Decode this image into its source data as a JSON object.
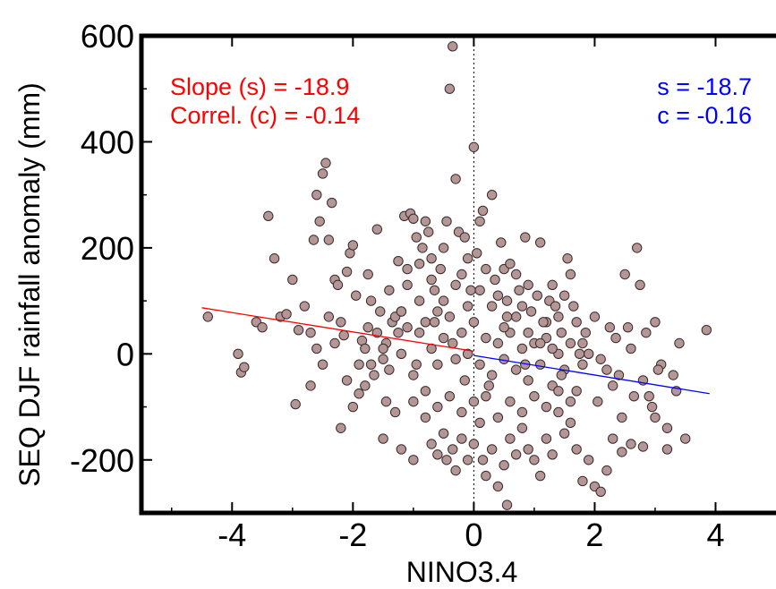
{
  "chart_data": {
    "type": "scatter",
    "xlabel": "NINO3.4",
    "ylabel": "SEQ DJF rainfall anomaly (mm)",
    "xlim": [
      -5.5,
      5.0
    ],
    "ylim": [
      -300,
      600
    ],
    "xticks": [
      "-4",
      "-2",
      "0",
      "2",
      "4"
    ],
    "xtick_values": [
      -4,
      -2,
      0,
      2,
      4
    ],
    "yticks": [
      "600",
      "400",
      "200",
      "0",
      "-200"
    ],
    "ytick_values": [
      600,
      400,
      200,
      0,
      -200
    ],
    "reference_line_x": 0,
    "point_color": "#b49696",
    "point_stroke": "#3a2a2a",
    "annotations": {
      "left_slope": "Slope (s) = -18.9",
      "left_correl": "Correl. (c) = -0.14",
      "right_slope": "s = -18.7",
      "right_correl": "c = -0.16",
      "left_color": "#ff0000",
      "right_color": "#0000ff"
    },
    "fit_lines": [
      {
        "x": [
          -4.5,
          0
        ],
        "y": [
          87,
          5
        ],
        "color": "#ff0000"
      },
      {
        "x": [
          0,
          3.9
        ],
        "y": [
          -3,
          -75
        ],
        "color": "#0000ff"
      }
    ],
    "series": [
      {
        "points": [
          [
            -4.4,
            70
          ],
          [
            -3.9,
            0
          ],
          [
            -3.85,
            -35
          ],
          [
            -3.8,
            -25
          ],
          [
            -3.6,
            60
          ],
          [
            -3.4,
            260
          ],
          [
            -3.3,
            180
          ],
          [
            -3.2,
            70
          ],
          [
            -3.1,
            75
          ],
          [
            -3.0,
            140
          ],
          [
            -2.95,
            -95
          ],
          [
            -2.9,
            45
          ],
          [
            -2.8,
            90
          ],
          [
            -2.7,
            40
          ],
          [
            -2.65,
            215
          ],
          [
            -2.6,
            300
          ],
          [
            -2.55,
            250
          ],
          [
            -2.5,
            340
          ],
          [
            -2.45,
            360
          ],
          [
            -2.4,
            215
          ],
          [
            -2.35,
            285
          ],
          [
            -2.3,
            140
          ],
          [
            -2.25,
            130
          ],
          [
            -2.2,
            60
          ],
          [
            -2.15,
            35
          ],
          [
            -2.1,
            155
          ],
          [
            -2.05,
            190
          ],
          [
            -2.0,
            205
          ],
          [
            -2.0,
            -100
          ],
          [
            -1.95,
            110
          ],
          [
            -1.9,
            -75
          ],
          [
            -1.85,
            25
          ],
          [
            -1.8,
            -60
          ],
          [
            -1.75,
            50
          ],
          [
            -1.7,
            100
          ],
          [
            -1.65,
            -40
          ],
          [
            -1.6,
            235
          ],
          [
            -1.55,
            80
          ],
          [
            -1.5,
            -10
          ],
          [
            -1.45,
            20
          ],
          [
            -1.4,
            120
          ],
          [
            -1.35,
            60
          ],
          [
            -1.3,
            -110
          ],
          [
            -1.25,
            40
          ],
          [
            -1.2,
            80
          ],
          [
            -1.15,
            260
          ],
          [
            -1.1,
            160
          ],
          [
            -1.05,
            265
          ],
          [
            -1.0,
            255
          ],
          [
            -0.95,
            220
          ],
          [
            -0.9,
            170
          ],
          [
            -0.85,
            200
          ],
          [
            -0.8,
            250
          ],
          [
            -0.75,
            230
          ],
          [
            -0.7,
            180
          ],
          [
            -0.65,
            120
          ],
          [
            -0.6,
            80
          ],
          [
            -0.55,
            160
          ],
          [
            -0.5,
            200
          ],
          [
            -0.45,
            250
          ],
          [
            -0.4,
            500
          ],
          [
            -0.35,
            580
          ],
          [
            -0.3,
            330
          ],
          [
            -0.25,
            230
          ],
          [
            -0.2,
            150
          ],
          [
            -0.15,
            220
          ],
          [
            -0.1,
            180
          ],
          [
            -0.05,
            120
          ],
          [
            0.0,
            390
          ],
          [
            0.05,
            190
          ],
          [
            0.1,
            250
          ],
          [
            0.15,
            270
          ],
          [
            0.2,
            160
          ],
          [
            0.3,
            300
          ],
          [
            0.35,
            140
          ],
          [
            0.4,
            110
          ],
          [
            0.45,
            210
          ],
          [
            0.5,
            160
          ],
          [
            0.55,
            100
          ],
          [
            0.6,
            170
          ],
          [
            0.7,
            150
          ],
          [
            0.75,
            120
          ],
          [
            0.8,
            90
          ],
          [
            0.85,
            220
          ],
          [
            0.9,
            130
          ],
          [
            0.95,
            80
          ],
          [
            1.05,
            110
          ],
          [
            1.1,
            210
          ],
          [
            1.2,
            60
          ],
          [
            1.25,
            100
          ],
          [
            1.3,
            130
          ],
          [
            1.35,
            90
          ],
          [
            1.4,
            70
          ],
          [
            1.45,
            40
          ],
          [
            1.5,
            110
          ],
          [
            1.55,
            180
          ],
          [
            1.6,
            150
          ],
          [
            1.65,
            90
          ],
          [
            1.7,
            60
          ],
          [
            1.8,
            20
          ],
          [
            1.85,
            40
          ],
          [
            1.9,
            0
          ],
          [
            2.0,
            70
          ],
          [
            2.1,
            -10
          ],
          [
            2.2,
            -30
          ],
          [
            2.3,
            -60
          ],
          [
            2.35,
            30
          ],
          [
            2.4,
            -40
          ],
          [
            2.5,
            150
          ],
          [
            2.55,
            50
          ],
          [
            2.6,
            10
          ],
          [
            2.7,
            200
          ],
          [
            2.75,
            130
          ],
          [
            2.8,
            -50
          ],
          [
            2.9,
            -80
          ],
          [
            2.95,
            -100
          ],
          [
            3.0,
            60
          ],
          [
            3.1,
            -20
          ],
          [
            3.2,
            -140
          ],
          [
            3.3,
            -40
          ],
          [
            3.35,
            -70
          ],
          [
            3.4,
            20
          ],
          [
            3.5,
            -160
          ],
          [
            3.85,
            45
          ],
          [
            -1.5,
            -160
          ],
          [
            -1.2,
            -180
          ],
          [
            -1.0,
            -200
          ],
          [
            -0.8,
            -120
          ],
          [
            -0.7,
            -170
          ],
          [
            -0.6,
            -190
          ],
          [
            -0.5,
            -150
          ],
          [
            -0.45,
            -200
          ],
          [
            -0.35,
            -180
          ],
          [
            -0.3,
            -220
          ],
          [
            -0.2,
            -160
          ],
          [
            -0.1,
            -200
          ],
          [
            0.0,
            -170
          ],
          [
            0.1,
            -130
          ],
          [
            0.15,
            -200
          ],
          [
            0.2,
            -230
          ],
          [
            0.3,
            -180
          ],
          [
            0.4,
            -250
          ],
          [
            0.5,
            -210
          ],
          [
            0.55,
            -285
          ],
          [
            0.6,
            -160
          ],
          [
            0.7,
            -190
          ],
          [
            0.8,
            -140
          ],
          [
            0.9,
            -180
          ],
          [
            1.0,
            -200
          ],
          [
            1.1,
            -230
          ],
          [
            1.2,
            -160
          ],
          [
            1.3,
            -190
          ],
          [
            1.4,
            -110
          ],
          [
            1.5,
            -150
          ],
          [
            1.6,
            -130
          ],
          [
            1.7,
            -180
          ],
          [
            1.8,
            -240
          ],
          [
            1.9,
            -200
          ],
          [
            2.0,
            -250
          ],
          [
            2.1,
            -260
          ],
          [
            2.2,
            -220
          ],
          [
            2.3,
            -160
          ],
          [
            2.45,
            -185
          ],
          [
            2.6,
            -170
          ],
          [
            2.8,
            -175
          ],
          [
            3.0,
            -120
          ],
          [
            3.2,
            -180
          ],
          [
            -1.8,
            10
          ],
          [
            -1.7,
            -20
          ],
          [
            -1.6,
            40
          ],
          [
            -1.5,
            10
          ],
          [
            -1.4,
            -30
          ],
          [
            -1.3,
            70
          ],
          [
            -1.2,
            0
          ],
          [
            -1.1,
            50
          ],
          [
            -1.0,
            -40
          ],
          [
            -0.9,
            40
          ],
          [
            -0.8,
            60
          ],
          [
            -0.7,
            10
          ],
          [
            -0.6,
            -20
          ],
          [
            -0.5,
            30
          ],
          [
            -0.4,
            70
          ],
          [
            -0.3,
            -10
          ],
          [
            -0.2,
            40
          ],
          [
            -0.1,
            0
          ],
          [
            0.0,
            60
          ],
          [
            0.1,
            -20
          ],
          [
            0.2,
            30
          ],
          [
            0.3,
            -40
          ],
          [
            0.4,
            20
          ],
          [
            0.5,
            -10
          ],
          [
            0.6,
            40
          ],
          [
            0.7,
            -30
          ],
          [
            0.8,
            10
          ],
          [
            0.9,
            -50
          ],
          [
            1.0,
            20
          ],
          [
            1.1,
            -20
          ],
          [
            1.2,
            30
          ],
          [
            1.3,
            -60
          ],
          [
            1.4,
            0
          ],
          [
            1.5,
            -30
          ],
          [
            1.6,
            20
          ],
          [
            1.7,
            -70
          ],
          [
            1.8,
            -20
          ],
          [
            -1.1,
            130
          ],
          [
            -0.9,
            100
          ],
          [
            -0.7,
            140
          ],
          [
            -0.5,
            100
          ],
          [
            -0.3,
            130
          ],
          [
            -0.1,
            90
          ],
          [
            0.1,
            120
          ],
          [
            0.3,
            90
          ],
          [
            0.5,
            50
          ],
          [
            0.7,
            70
          ],
          [
            0.9,
            40
          ],
          [
            1.1,
            20
          ],
          [
            1.3,
            10
          ],
          [
            -1.0,
            -90
          ],
          [
            -0.8,
            -70
          ],
          [
            -0.6,
            -100
          ],
          [
            -0.4,
            -80
          ],
          [
            -0.2,
            -110
          ],
          [
            0.0,
            -90
          ],
          [
            0.2,
            -80
          ],
          [
            0.4,
            -120
          ],
          [
            0.6,
            -90
          ],
          [
            0.8,
            -110
          ],
          [
            1.0,
            -80
          ],
          [
            1.2,
            -100
          ],
          [
            1.4,
            -70
          ],
          [
            1.6,
            -90
          ],
          [
            -1.2,
            80
          ],
          [
            -0.95,
            -20
          ],
          [
            -0.65,
            60
          ],
          [
            -0.35,
            20
          ],
          [
            -0.15,
            -50
          ],
          [
            0.25,
            -60
          ],
          [
            0.55,
            70
          ],
          [
            0.85,
            -20
          ],
          [
            1.15,
            60
          ],
          [
            1.45,
            -40
          ],
          [
            1.75,
            0
          ],
          [
            2.05,
            -90
          ],
          [
            2.25,
            50
          ],
          [
            2.45,
            -120
          ],
          [
            2.65,
            -80
          ],
          [
            2.85,
            40
          ],
          [
            3.05,
            -30
          ],
          [
            -2.7,
            -60
          ],
          [
            -2.5,
            -20
          ],
          [
            -2.3,
            20
          ],
          [
            -2.1,
            -50
          ],
          [
            -1.9,
            -20
          ],
          [
            -2.4,
            70
          ],
          [
            -2.6,
            10
          ],
          [
            -3.5,
            50
          ],
          [
            -2.2,
            -140
          ],
          [
            -1.75,
            150
          ],
          [
            -1.45,
            -90
          ],
          [
            -1.25,
            175
          ]
        ]
      }
    ]
  }
}
